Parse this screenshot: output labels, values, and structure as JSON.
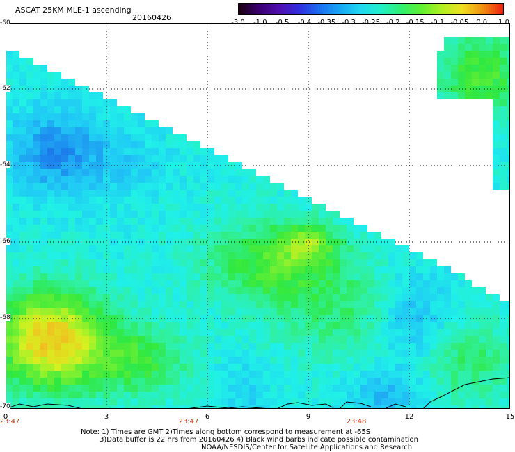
{
  "header": {
    "title": "ASCAT 25KM MLE-1 ascending",
    "date": "20160426"
  },
  "colorbar": {
    "labels": [
      "-3.0",
      "-1.0",
      "-0.5",
      "-0.4",
      "-0.35",
      "-0.3",
      "-0.25",
      "-0.2",
      "-0.15",
      "-0.1",
      "-0.05",
      "0.0",
      "1.0"
    ],
    "colors": [
      "#1a0000",
      "#30005a",
      "#5a0aa8",
      "#3a28e8",
      "#1f6ee8",
      "#1ea8f5",
      "#20d8f5",
      "#20f0c8",
      "#30f060",
      "#90f020",
      "#f0f020",
      "#f0a010",
      "#f03010"
    ]
  },
  "axes": {
    "y_ticks": [
      "-60",
      "-62",
      "-64",
      "-66",
      "-68",
      "-70"
    ],
    "x_ticks": [
      "0",
      "3",
      "6",
      "9",
      "12",
      "15"
    ],
    "time_labels": [
      "23:47",
      "23:47",
      "23:48"
    ]
  },
  "notes": [
    "Note: 1) Times are GMT 2)Times along bottom correspond to measurement at -65S",
    "3)Data buffer is 22 hrs from 20160426 4) Black wind barbs indicate possible contamination",
    "NOAA/NESDIS/Center for Satellite Applications and Research"
  ],
  "field": {
    "description_colors": {
      "bg_cyan": "#20e8f0",
      "blue": "#1e8ef0",
      "deep_blue": "#1a5ae0",
      "green": "#30e840",
      "lime": "#7cf030",
      "yellow": "#f0f030",
      "orange": "#f0b020"
    }
  }
}
